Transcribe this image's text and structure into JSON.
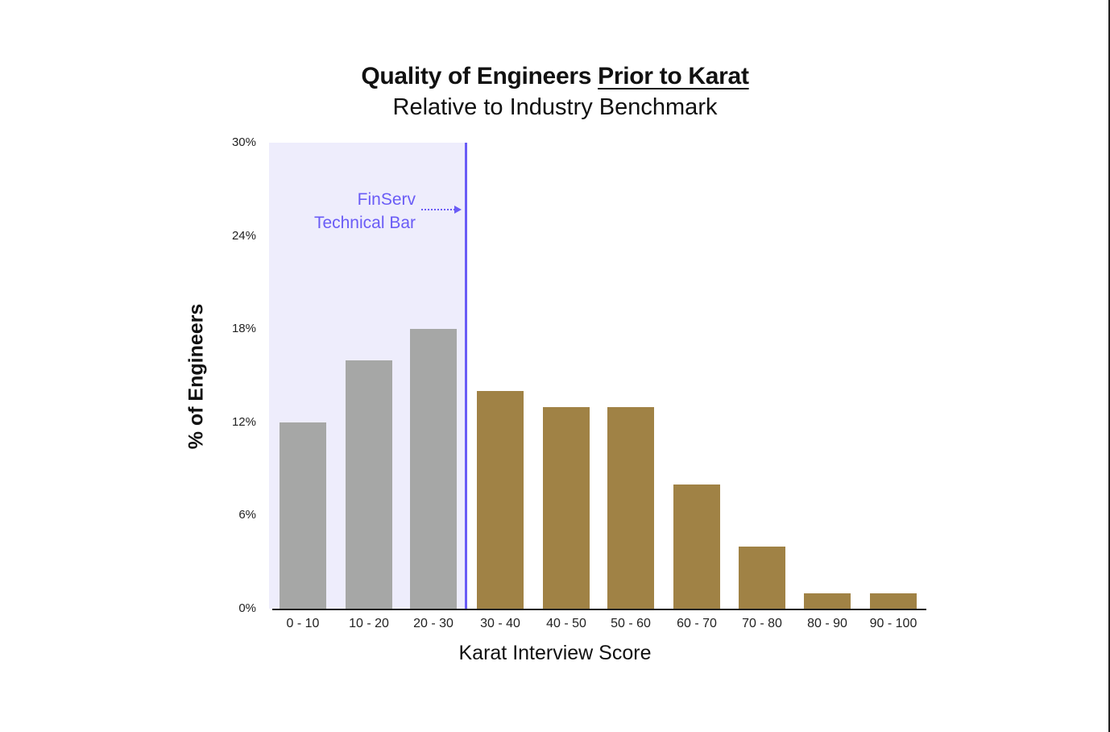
{
  "chart_data": {
    "type": "bar",
    "title": "Quality of Engineers Prior to Karat",
    "title_parts": {
      "plain": "Quality of Engineers ",
      "underlined": "Prior to Karat"
    },
    "subtitle": "Relative to Industry Benchmark",
    "xlabel": "Karat Interview Score",
    "ylabel": "% of Engineers",
    "ylim": [
      0,
      30
    ],
    "yticks": [
      "0%",
      "6%",
      "12%",
      "18%",
      "24%",
      "30%"
    ],
    "grid": false,
    "categories": [
      "0 - 10",
      "10 - 20",
      "20 - 30",
      "30 - 40",
      "40 - 50",
      "50 - 60",
      "60 - 70",
      "70 - 80",
      "80 - 90",
      "90 - 100"
    ],
    "values": [
      12,
      16,
      18,
      14,
      13,
      13,
      8,
      4,
      1,
      1
    ],
    "bar_colors": [
      "#a6a7a6",
      "#a6a7a6",
      "#a6a7a6",
      "#a08245",
      "#a08245",
      "#a08245",
      "#a08245",
      "#a08245",
      "#a08245",
      "#a08245"
    ],
    "annotations": [
      {
        "text_line1": "FinServ",
        "text_line2": "Technical Bar",
        "position": "vertical line between 20 - 30 and 30 - 40",
        "color": "#6a5cf6",
        "shaded_region": "0 - 30",
        "shade_color": "#eeedfc"
      }
    ]
  }
}
